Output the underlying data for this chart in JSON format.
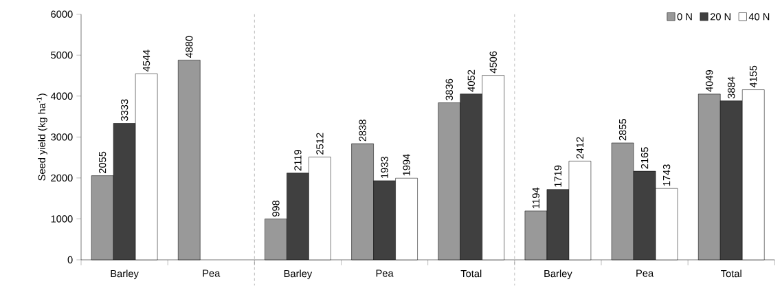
{
  "chart_data": {
    "type": "bar",
    "ylabel": "Seed yield (kg ha$^{-1}$)",
    "categories": [
      "Barley",
      "Pea",
      "Barley",
      "Pea",
      "Total",
      "Barley",
      "Pea",
      "Total"
    ],
    "series": [
      {
        "name": "0 N",
        "color": "#999999",
        "values": [
          2055,
          4880,
          998,
          2838,
          3836,
          1194,
          2855,
          4049
        ]
      },
      {
        "name": "20 N",
        "color": "#404040",
        "values": [
          3333,
          null,
          2119,
          1933,
          4052,
          1719,
          2165,
          3884
        ]
      },
      {
        "name": "40 N",
        "color": "#ffffff",
        "values": [
          4544,
          null,
          2512,
          1994,
          4506,
          2412,
          1743,
          4155
        ]
      }
    ],
    "ylim": [
      0,
      6000
    ],
    "yticks": [
      0,
      1000,
      2000,
      3000,
      4000,
      5000,
      6000
    ],
    "data_labels": true,
    "legend": "top right"
  }
}
